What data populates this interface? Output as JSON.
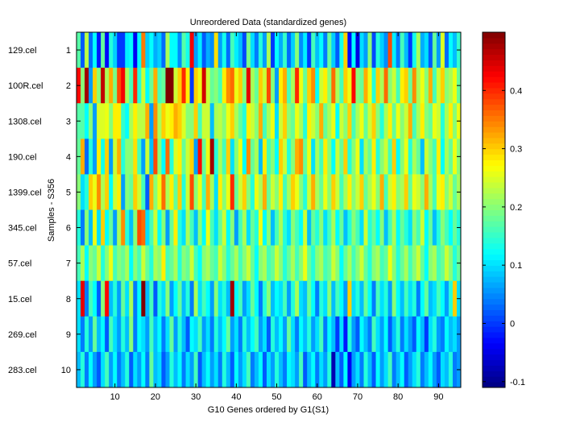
{
  "chart_data": {
    "type": "heatmap",
    "title": "Unreordered Data (standardized genes)",
    "xlabel": "G10 Genes ordered by G1(S1)",
    "ylabel": "Samples - S356",
    "x_ticks": [
      10,
      20,
      30,
      40,
      50,
      60,
      70,
      80,
      90
    ],
    "xlim": [
      0.5,
      95.5
    ],
    "y_ticks": [
      1,
      2,
      3,
      4,
      5,
      6,
      7,
      8,
      9,
      10
    ],
    "row_labels": [
      "129.cel",
      "100R.cel",
      "1308.cel",
      "190.cel",
      "1399.cel",
      "345.cel",
      "57.cel",
      "15.cel",
      "269.cel",
      "283.cel"
    ],
    "colormap": "jet",
    "clim": [
      -0.11,
      0.5
    ],
    "colorbar_ticks": [
      -0.1,
      0,
      0.1,
      0.2,
      0.3,
      0.4
    ],
    "colorbar_tick_labels": [
      "-0.1",
      "0",
      "0.1",
      "0.2",
      "0.3",
      "0.4"
    ],
    "values": [
      [
        0.17,
        0.02,
        0.23,
        0.03,
        0.12,
        -0.02,
        0.18,
        -0.03,
        0.14,
        0.09,
        0.0,
        0.0,
        0.11,
        0.12,
        -0.04,
        0.12,
        0.35,
        0.09,
        0.12,
        0.07,
        0.09,
        0.03,
        0.22,
        0.12,
        0.12,
        0.05,
        0.17,
        0.13,
        0.43,
        0.06,
        0.11,
        0.02,
        0.07,
        0.05,
        0.29,
        0.06,
        0.13,
        0.03,
        0.16,
        0.11,
        0.08,
        0.01,
        0.19,
        0.1,
        0.04,
        0.14,
        0.06,
        0.22,
        0.0,
        0.12,
        0.07,
        0.15,
        0.03,
        0.09,
        0.2,
        0.05,
        0.11,
        0.0,
        0.16,
        0.08,
        0.12,
        0.04,
        0.18,
        0.09,
        0.02,
        0.13,
        0.3,
        -0.03,
        0.12,
        -0.05,
        0.1,
        0.06,
        0.2,
        0.01,
        0.14,
        0.09,
        0.05,
        0.38,
        0.11,
        0.04,
        0.16,
        0.08,
        0.0,
        0.13,
        0.22,
        0.07,
        0.1,
        0.02,
        0.18,
        0.06,
        0.25,
        0.03,
        0.12,
        0.08,
        0.15
      ],
      [
        0.42,
        0.2,
        0.48,
        0.06,
        0.3,
        0.2,
        0.46,
        0.22,
        0.32,
        0.19,
        0.38,
        0.43,
        0.22,
        0.16,
        0.4,
        0.14,
        0.24,
        0.12,
        0.18,
        0.32,
        0.16,
        0.18,
        0.5,
        0.5,
        0.24,
        0.3,
        0.4,
        0.28,
        0.0,
        0.3,
        0.26,
        0.45,
        0.24,
        0.18,
        0.2,
        0.16,
        0.28,
        0.34,
        0.36,
        0.26,
        0.3,
        0.2,
        0.44,
        0.22,
        0.18,
        0.3,
        0.24,
        0.38,
        0.2,
        0.06,
        0.28,
        0.32,
        0.16,
        0.22,
        0.4,
        0.26,
        0.18,
        0.3,
        0.34,
        0.12,
        0.24,
        0.28,
        0.2,
        0.36,
        0.22,
        0.16,
        0.3,
        0.26,
        0.42,
        0.2,
        0.18,
        0.32,
        0.26,
        0.14,
        0.3,
        0.22,
        0.36,
        0.2,
        0.24,
        0.16,
        0.28,
        0.3,
        0.18,
        0.34,
        0.22,
        0.26,
        0.2,
        0.32,
        0.16,
        0.24,
        0.3,
        0.2,
        0.22,
        0.26,
        0.18
      ],
      [
        0.17,
        0.17,
        0.12,
        0.2,
        0.06,
        0.25,
        0.25,
        0.26,
        0.2,
        0.28,
        0.28,
        0.15,
        0.12,
        0.22,
        0.28,
        0.23,
        0.23,
        0.32,
        0.06,
        0.34,
        0.22,
        0.3,
        0.26,
        0.28,
        0.32,
        0.3,
        0.25,
        0.2,
        0.2,
        0.3,
        0.16,
        0.24,
        0.24,
        0.08,
        0.22,
        0.23,
        0.2,
        0.26,
        0.3,
        0.22,
        0.18,
        0.14,
        0.28,
        0.24,
        0.2,
        0.32,
        0.16,
        0.22,
        0.26,
        0.1,
        0.24,
        0.3,
        0.2,
        0.18,
        0.26,
        0.22,
        0.14,
        0.28,
        0.24,
        0.2,
        0.32,
        0.18,
        0.22,
        0.26,
        0.12,
        0.24,
        0.2,
        0.3,
        0.16,
        0.22,
        0.26,
        0.18,
        0.24,
        0.3,
        0.2,
        0.14,
        0.22,
        0.28,
        0.18,
        0.26,
        0.2,
        0.24,
        0.32,
        0.16,
        0.22,
        0.28,
        0.2,
        0.18,
        0.26,
        0.24,
        0.14,
        0.22,
        0.28,
        0.2,
        0.26
      ],
      [
        0.18,
        0.32,
        0.03,
        0.14,
        0.06,
        0.28,
        0.13,
        0.3,
        0.06,
        0.24,
        0.32,
        0.14,
        0.2,
        0.2,
        0.29,
        0.16,
        0.06,
        0.24,
        0.08,
        0.38,
        0.2,
        0.12,
        0.36,
        0.14,
        0.25,
        0.28,
        0.18,
        0.24,
        0.3,
        0.06,
        0.42,
        0.18,
        0.26,
        0.48,
        0.14,
        0.22,
        0.16,
        0.3,
        0.1,
        0.2,
        0.26,
        0.12,
        0.34,
        0.18,
        0.22,
        0.08,
        0.28,
        0.16,
        0.2,
        0.12,
        0.3,
        0.24,
        0.14,
        0.2,
        0.32,
        0.34,
        0.18,
        0.26,
        0.1,
        0.22,
        0.16,
        0.28,
        0.2,
        0.12,
        0.24,
        0.18,
        0.3,
        0.14,
        0.2,
        0.26,
        0.1,
        0.22,
        0.18,
        0.28,
        0.14,
        0.2,
        0.24,
        0.16,
        0.3,
        0.12,
        0.2,
        0.26,
        0.14,
        0.22,
        0.18,
        0.08,
        0.24,
        0.2,
        0.16,
        0.28,
        0.12,
        0.22,
        0.18,
        0.26,
        0.2
      ],
      [
        0.2,
        0.1,
        0.14,
        0.3,
        0.26,
        0.34,
        0.22,
        0.3,
        0.12,
        0.24,
        0.28,
        0.06,
        0.2,
        0.18,
        0.3,
        0.24,
        0.16,
        0.02,
        0.32,
        0.2,
        0.26,
        0.36,
        0.22,
        0.28,
        0.18,
        0.3,
        0.14,
        0.24,
        0.38,
        0.2,
        0.26,
        0.16,
        0.32,
        0.22,
        0.1,
        0.28,
        0.2,
        0.26,
        0.4,
        0.18,
        0.24,
        0.3,
        0.2,
        0.14,
        0.26,
        0.22,
        0.32,
        0.18,
        0.24,
        0.2,
        0.28,
        0.16,
        0.22,
        0.3,
        0.26,
        0.2,
        0.14,
        0.24,
        0.32,
        0.22,
        0.18,
        0.26,
        0.2,
        0.3,
        0.24,
        0.16,
        0.22,
        0.28,
        0.2,
        0.24,
        0.3,
        0.18,
        0.22,
        0.26,
        0.2,
        0.32,
        0.16,
        0.24,
        0.28,
        0.2,
        0.22,
        0.3,
        0.18,
        0.26,
        0.24,
        0.2,
        0.32,
        0.22,
        0.16,
        0.26,
        0.28,
        0.2,
        0.24,
        0.18,
        0.22
      ],
      [
        0.14,
        0.04,
        0.2,
        0.08,
        0.26,
        0.1,
        0.3,
        0.12,
        0.18,
        0.06,
        0.22,
        0.34,
        0.14,
        0.08,
        0.2,
        0.38,
        0.36,
        0.1,
        0.16,
        0.24,
        0.12,
        0.2,
        0.06,
        0.18,
        0.28,
        0.14,
        0.1,
        0.22,
        0.16,
        0.08,
        0.2,
        0.12,
        0.26,
        0.16,
        0.1,
        0.18,
        0.24,
        0.12,
        0.2,
        0.06,
        0.16,
        0.22,
        0.1,
        0.18,
        0.14,
        0.26,
        0.12,
        0.2,
        0.08,
        0.16,
        0.22,
        0.14,
        0.1,
        0.2,
        0.16,
        0.12,
        0.24,
        0.08,
        0.18,
        0.14,
        0.2,
        0.1,
        0.16,
        0.22,
        0.12,
        0.18,
        0.08,
        0.14,
        0.2,
        0.16,
        0.1,
        0.24,
        0.14,
        0.18,
        0.12,
        0.2,
        0.08,
        0.16,
        0.22,
        0.12,
        0.18,
        0.14,
        0.1,
        0.2,
        0.16,
        0.24,
        0.12,
        0.18,
        0.08,
        0.14,
        0.2,
        0.16,
        0.12,
        0.18,
        0.14
      ],
      [
        0.16,
        0.22,
        0.12,
        0.2,
        0.18,
        0.24,
        0.14,
        0.2,
        0.26,
        0.16,
        0.2,
        0.18,
        0.22,
        0.12,
        0.2,
        0.16,
        0.24,
        0.18,
        0.14,
        0.22,
        0.2,
        0.28,
        0.16,
        0.18,
        0.22,
        0.14,
        0.2,
        0.18,
        0.24,
        0.16,
        0.12,
        0.2,
        0.22,
        0.18,
        0.16,
        0.24,
        0.2,
        0.14,
        0.18,
        0.22,
        0.16,
        0.2,
        0.24,
        0.18,
        0.12,
        0.2,
        0.22,
        0.16,
        0.18,
        0.24,
        0.2,
        0.14,
        0.18,
        0.22,
        0.16,
        0.2,
        0.26,
        0.18,
        0.14,
        0.2,
        0.22,
        0.16,
        0.18,
        0.24,
        0.2,
        0.12,
        0.18,
        0.22,
        0.16,
        0.2,
        0.24,
        0.18,
        0.14,
        0.2,
        0.22,
        0.16,
        0.18,
        0.26,
        0.2,
        0.14,
        0.18,
        0.22,
        0.16,
        0.2,
        0.24,
        0.18,
        0.12,
        0.2,
        0.22,
        0.16,
        0.18,
        0.24,
        0.2,
        0.14,
        0.18
      ],
      [
        0.1,
        0.44,
        0.04,
        0.16,
        0.12,
        0.02,
        0.2,
        0.42,
        0.08,
        0.14,
        0.06,
        0.18,
        0.1,
        0.22,
        0.04,
        0.12,
        0.5,
        0.08,
        0.16,
        0.02,
        0.14,
        0.1,
        0.2,
        0.06,
        0.12,
        0.18,
        0.08,
        0.14,
        0.04,
        0.22,
        0.1,
        0.16,
        0.12,
        0.06,
        0.2,
        0.1,
        0.14,
        0.08,
        0.48,
        0.12,
        0.16,
        0.06,
        0.1,
        0.18,
        0.12,
        0.04,
        0.14,
        0.2,
        0.08,
        0.12,
        0.1,
        0.16,
        0.06,
        0.14,
        0.22,
        0.1,
        0.08,
        0.18,
        0.12,
        0.04,
        0.14,
        0.1,
        0.2,
        0.08,
        0.16,
        0.12,
        0.06,
        0.3,
        0.1,
        0.14,
        0.08,
        0.18,
        0.12,
        0.04,
        0.16,
        0.1,
        0.14,
        0.06,
        0.2,
        0.12,
        0.08,
        0.16,
        0.1,
        0.14,
        0.04,
        0.12,
        0.18,
        0.08,
        0.1,
        0.16,
        0.12,
        0.06,
        0.14,
        0.3,
        0.1
      ],
      [
        0.1,
        0.04,
        0.14,
        0.06,
        0.18,
        0.08,
        0.12,
        0.02,
        0.16,
        0.1,
        0.06,
        0.14,
        0.08,
        0.2,
        0.04,
        0.12,
        0.1,
        0.06,
        0.16,
        0.08,
        0.12,
        0.04,
        0.1,
        0.18,
        0.06,
        0.14,
        0.08,
        0.02,
        0.12,
        0.1,
        0.16,
        0.06,
        0.1,
        0.04,
        0.14,
        0.08,
        0.12,
        0.18,
        0.06,
        0.1,
        0.04,
        0.14,
        0.08,
        0.12,
        0.16,
        0.06,
        0.1,
        0.02,
        0.14,
        0.08,
        0.12,
        0.06,
        0.18,
        0.1,
        0.04,
        0.12,
        0.08,
        0.14,
        0.06,
        0.1,
        0.16,
        0.04,
        0.12,
        0.08,
        0.0,
        0.1,
        -0.02,
        0.14,
        0.06,
        0.02,
        0.12,
        0.08,
        0.04,
        0.16,
        0.1,
        0.06,
        0.12,
        0.02,
        0.08,
        0.14,
        0.04,
        0.1,
        0.06,
        0.02,
        0.12,
        0.08,
        0.0,
        0.1,
        0.14,
        0.06,
        0.04,
        0.12,
        0.08,
        0.1,
        0.06
      ],
      [
        0.08,
        0.14,
        0.04,
        0.12,
        0.06,
        0.02,
        0.1,
        0.16,
        0.06,
        0.12,
        0.04,
        0.08,
        0.14,
        0.02,
        0.1,
        0.06,
        0.12,
        0.04,
        0.18,
        0.08,
        0.1,
        0.02,
        0.06,
        0.14,
        0.08,
        0.12,
        0.04,
        0.1,
        0.06,
        0.16,
        0.02,
        0.08,
        0.12,
        0.06,
        0.1,
        0.04,
        0.14,
        0.08,
        0.02,
        0.12,
        0.06,
        0.1,
        0.16,
        0.04,
        0.08,
        0.12,
        0.02,
        0.1,
        0.06,
        0.14,
        0.08,
        0.04,
        0.12,
        0.1,
        0.06,
        0.16,
        0.02,
        0.08,
        0.12,
        0.04,
        0.1,
        0.06,
        0.14,
        -0.08,
        0.08,
        0.02,
        0.12,
        -0.04,
        0.06,
        0.1,
        0.04,
        0.14,
        0.08,
        0.02,
        0.12,
        0.06,
        0.1,
        0.16,
        0.04,
        0.08,
        0.12,
        0.02,
        0.06,
        0.1,
        0.14,
        0.04,
        0.08,
        0.12,
        0.06,
        0.02,
        0.1,
        0.08,
        0.14,
        0.04,
        0.06
      ]
    ]
  }
}
